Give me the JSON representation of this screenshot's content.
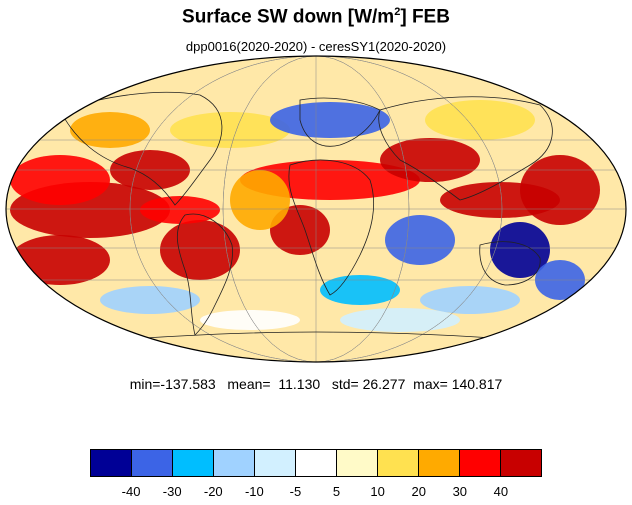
{
  "title": {
    "main": "Surface SW down [W/m",
    "sup": "2",
    "tail": "]  FEB"
  },
  "subtitle": "dpp0016(2020-2020) - ceresSY1(2020-2020)",
  "stats": {
    "min_label": "min=",
    "min": "-137.583",
    "mean_label": "mean=",
    "mean": "11.130",
    "std_label": "std=",
    "std": "26.277",
    "max_label": "max=",
    "max": "140.817"
  },
  "map": {
    "projection": "mollweide",
    "field": "Surface SW down difference (model minus observation)",
    "units": "W/m2"
  },
  "colorbar": {
    "colors": [
      "#000096",
      "#3c64e6",
      "#00beff",
      "#a0d2ff",
      "#d2f0ff",
      "#ffffff",
      "#fffac8",
      "#ffe150",
      "#ffaa00",
      "#ff0000",
      "#c80000"
    ],
    "labels": [
      "-40",
      "-30",
      "-20",
      "-10",
      "-5",
      "5",
      "10",
      "20",
      "30",
      "40"
    ]
  }
}
